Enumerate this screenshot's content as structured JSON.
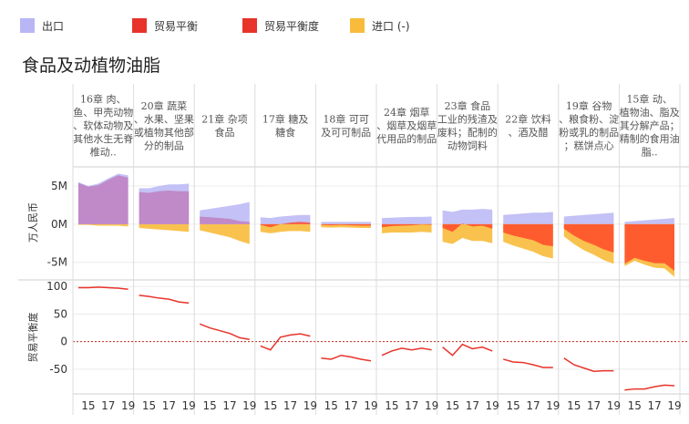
{
  "legend": [
    {
      "label": "出口",
      "color": "#b9b6f5"
    },
    {
      "label": "贸易平衡",
      "color": "#e8332a"
    },
    {
      "label": "贸易平衡度",
      "color": "#e8332a"
    },
    {
      "label": "进口 (-)",
      "color": "#f8bb3b"
    }
  ],
  "chart_data": {
    "type": "area",
    "title": "食品及动植物油脂",
    "top_ylabel": "万人民币",
    "bottom_ylabel": "贸易平衡度",
    "top_yticks": [
      "5M",
      "0M",
      "-5M"
    ],
    "top_ytick_values": [
      5,
      0,
      -5
    ],
    "top_ylim": [
      -7.3,
      7.5
    ],
    "bottom_yticks": [
      "100",
      "50",
      "0",
      "-50"
    ],
    "bottom_ytick_values": [
      100,
      50,
      0,
      -50
    ],
    "bottom_ylim": [
      -95,
      112
    ],
    "x": [
      2014,
      2015,
      2016,
      2017,
      2018,
      2019
    ],
    "xtick_labels": [
      "15",
      "17",
      "19"
    ],
    "xtick_values": [
      2015,
      2017,
      2019
    ],
    "units": "million RMB (万人民币 axis, M = millions)",
    "panels": [
      {
        "header": "16章 肉、鱼、甲壳动物、软体动物及其他水生无脊椎动..",
        "export": [
          5.5,
          5.0,
          5.3,
          6.0,
          6.6,
          6.4
        ],
        "import": [
          -0.1,
          -0.1,
          -0.2,
          -0.2,
          -0.2,
          -0.3
        ],
        "balance_degree": [
          98,
          98,
          99,
          98,
          97,
          95
        ]
      },
      {
        "header": "20章 蔬菜、水果、坚果或植物其他部分的制品",
        "export": [
          4.7,
          4.7,
          5.0,
          5.2,
          5.2,
          5.3
        ],
        "import": [
          -0.5,
          -0.6,
          -0.7,
          -0.8,
          -0.9,
          -1.0
        ],
        "balance_degree": [
          84,
          82,
          79,
          77,
          72,
          70
        ]
      },
      {
        "header": "21章 杂项食品",
        "export": [
          1.8,
          2.0,
          2.2,
          2.4,
          2.6,
          2.9
        ],
        "import": [
          -0.8,
          -1.1,
          -1.4,
          -1.7,
          -2.2,
          -2.6
        ],
        "balance_degree": [
          32,
          25,
          20,
          15,
          7,
          4
        ]
      },
      {
        "header": "17章 糖及糖食",
        "export": [
          0.9,
          0.8,
          1.0,
          1.1,
          1.2,
          1.2
        ],
        "import": [
          -1.0,
          -1.2,
          -1.0,
          -0.9,
          -0.9,
          -1.0
        ],
        "balance_degree": [
          -8,
          -15,
          8,
          12,
          14,
          10
        ]
      },
      {
        "header": "18章 可可及可可制品",
        "export": [
          0.3,
          0.3,
          0.3,
          0.3,
          0.3,
          0.3
        ],
        "import": [
          -0.4,
          -0.45,
          -0.4,
          -0.45,
          -0.5,
          -0.5
        ],
        "balance_degree": [
          -30,
          -32,
          -25,
          -28,
          -32,
          -35
        ]
      },
      {
        "header": "24章 烟草、烟草及烟草代用品的制品",
        "export": [
          0.8,
          0.85,
          0.9,
          0.95,
          0.95,
          1.0
        ],
        "import": [
          -1.2,
          -1.1,
          -1.1,
          -1.1,
          -1.0,
          -1.1
        ],
        "balance_degree": [
          -25,
          -17,
          -12,
          -15,
          -12,
          -15
        ]
      },
      {
        "header": "23章 食品工业的残渣及废料；配制的动物饲料",
        "export": [
          1.8,
          1.6,
          1.9,
          1.9,
          2.0,
          1.9
        ],
        "import": [
          -2.3,
          -2.6,
          -1.8,
          -2.2,
          -2.2,
          -2.5
        ],
        "balance_degree": [
          -10,
          -25,
          -5,
          -13,
          -10,
          -17
        ]
      },
      {
        "header": "22章 饮料、酒及醋",
        "export": [
          1.2,
          1.3,
          1.4,
          1.5,
          1.5,
          1.6
        ],
        "import": [
          -2.3,
          -2.8,
          -3.2,
          -3.6,
          -4.2,
          -4.5
        ],
        "balance_degree": [
          -32,
          -37,
          -38,
          -42,
          -47,
          -47
        ]
      },
      {
        "header": "19章 谷物、粮食粉、淀粉或乳的制品；糕饼点心",
        "export": [
          1.0,
          1.1,
          1.2,
          1.3,
          1.4,
          1.5
        ],
        "import": [
          -1.6,
          -2.6,
          -3.4,
          -4.0,
          -4.7,
          -5.2
        ],
        "balance_degree": [
          -30,
          -42,
          -48,
          -54,
          -53,
          -53
        ]
      },
      {
        "header": "15章 动、植物油、脂及其分解产品；精制的食用油脂..",
        "export": [
          0.3,
          0.4,
          0.5,
          0.6,
          0.7,
          0.8
        ],
        "import": [
          -5.5,
          -4.8,
          -5.3,
          -5.7,
          -5.8,
          -6.9
        ],
        "balance_degree": [
          -88,
          -86,
          -86,
          -82,
          -79,
          -80
        ]
      }
    ]
  }
}
